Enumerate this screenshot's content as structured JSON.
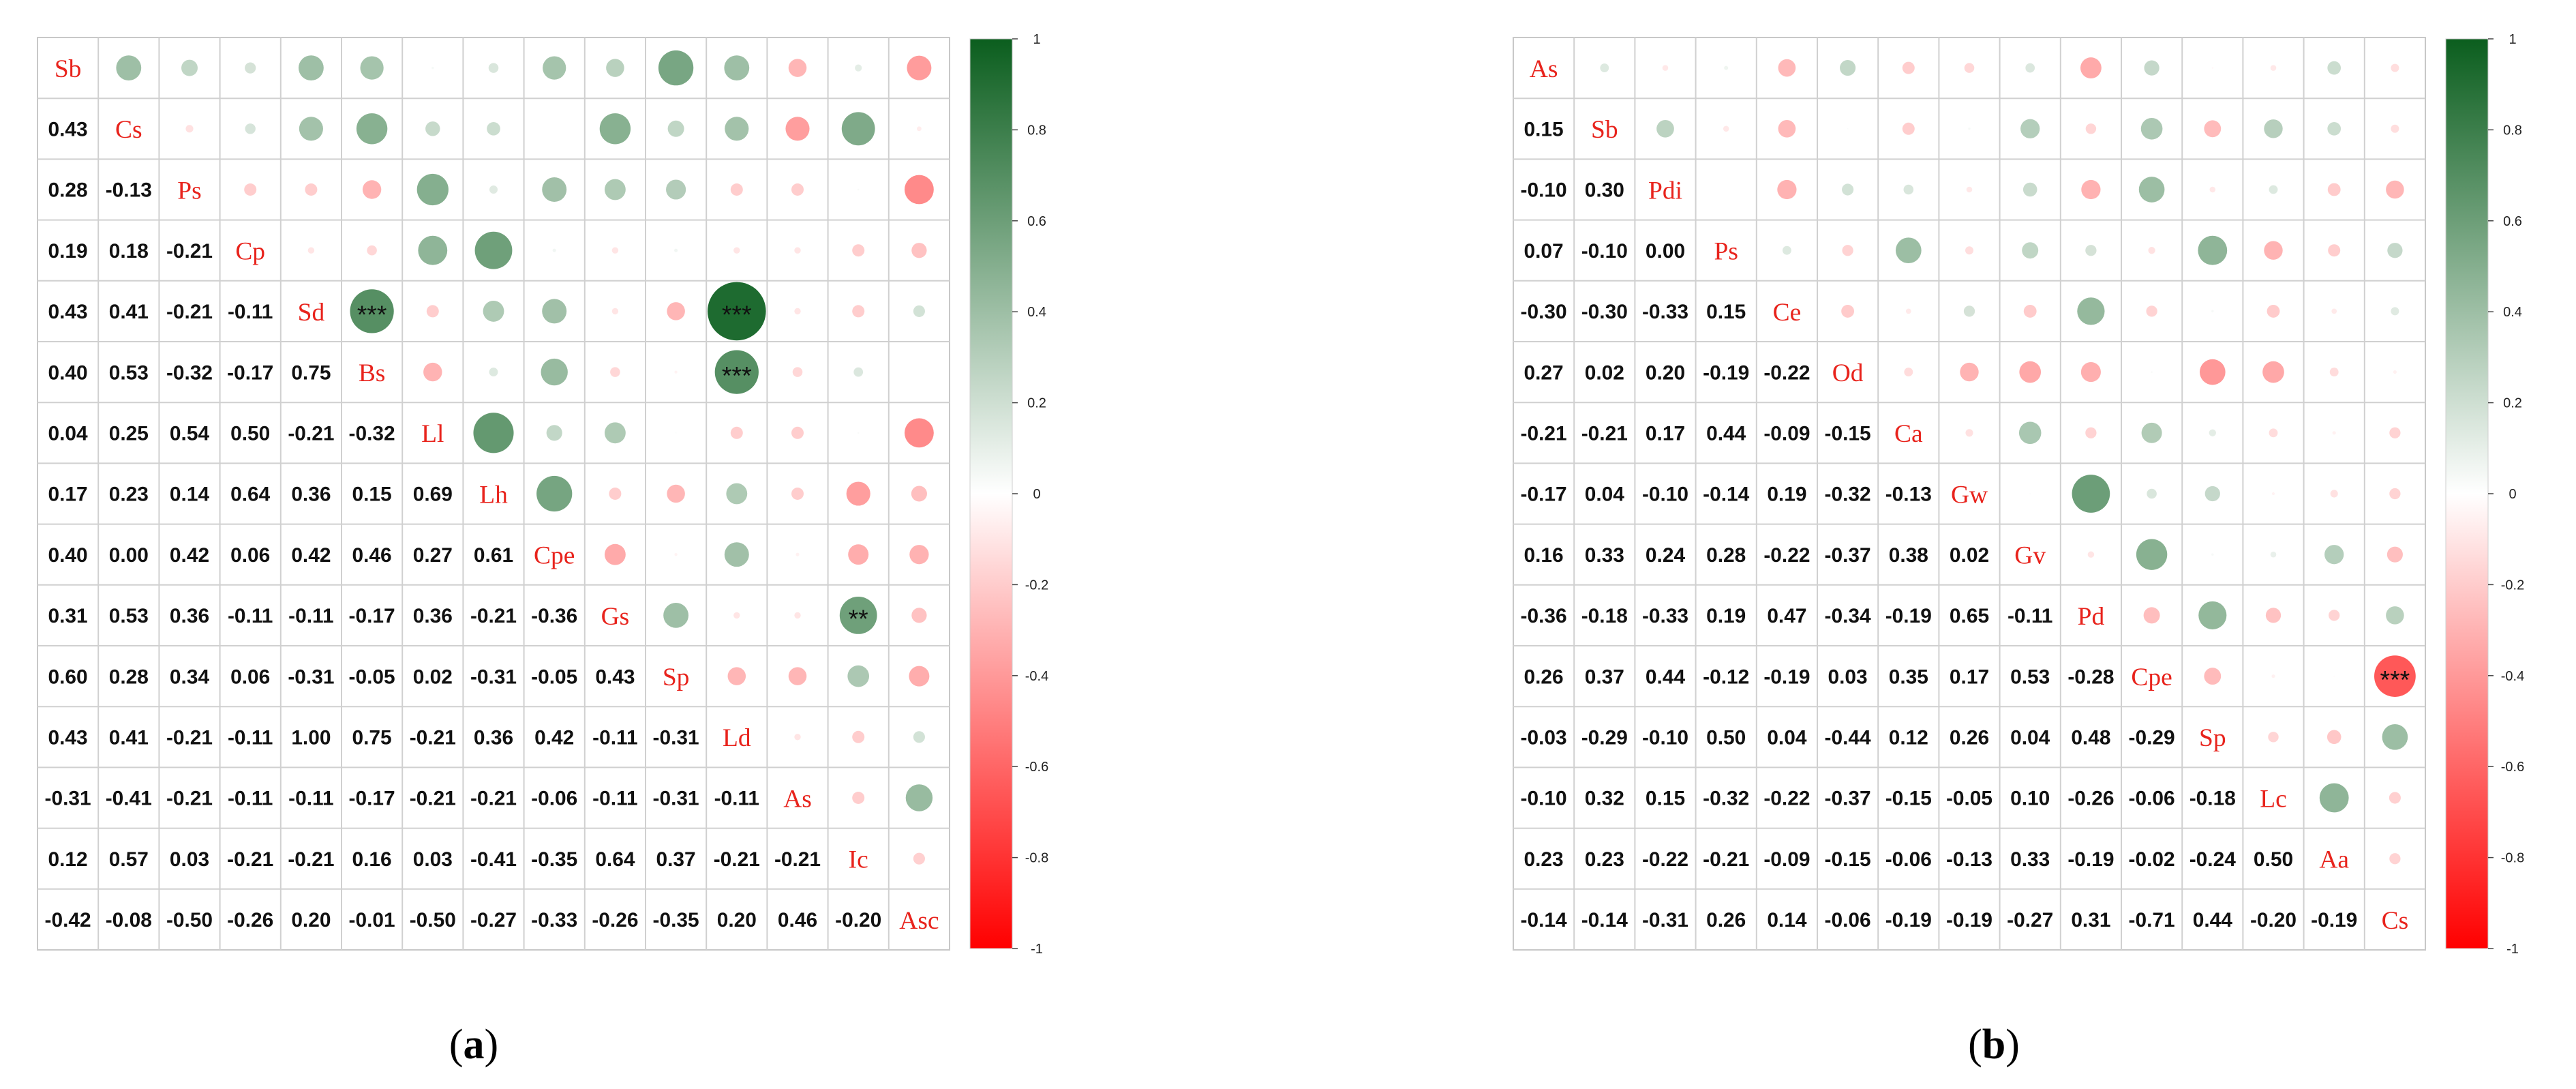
{
  "chart_data": [
    {
      "type": "heatmap",
      "panel_label": "(a)",
      "variables": [
        "Sb",
        "Cs",
        "Ps",
        "Cp",
        "Sd",
        "Bs",
        "Ll",
        "Lh",
        "Cpe",
        "Gs",
        "Sp",
        "Ld",
        "As",
        "Ic",
        "Asc"
      ],
      "lower_values": [
        [],
        [
          "0.43"
        ],
        [
          "0.28",
          "-0.13"
        ],
        [
          "0.19",
          "0.18",
          "-0.21"
        ],
        [
          "0.43",
          "0.41",
          "-0.21",
          "-0.11"
        ],
        [
          "0.40",
          "0.53",
          "-0.32",
          "-0.17",
          "0.75"
        ],
        [
          "0.04",
          "0.25",
          "0.54",
          "0.50",
          "-0.21",
          "-0.32"
        ],
        [
          "0.17",
          "0.23",
          "0.14",
          "0.64",
          "0.36",
          "0.15",
          "0.69"
        ],
        [
          "0.40",
          "0.00",
          "0.42",
          "0.06",
          "0.42",
          "0.46",
          "0.27",
          "0.61"
        ],
        [
          "0.31",
          "0.53",
          "0.36",
          "-0.11",
          "-0.11",
          "-0.17",
          "0.36",
          "-0.21",
          "-0.36"
        ],
        [
          "0.60",
          "0.28",
          "0.34",
          "0.06",
          "-0.31",
          "-0.05",
          "0.02",
          "-0.31",
          "-0.05",
          "0.43"
        ],
        [
          "0.43",
          "0.41",
          "-0.21",
          "-0.11",
          "1.00",
          "0.75",
          "-0.21",
          "0.36",
          "0.42",
          "-0.11",
          "-0.31"
        ],
        [
          "-0.31",
          "-0.41",
          "-0.21",
          "-0.11",
          "-0.11",
          "-0.17",
          "-0.21",
          "-0.21",
          "-0.06",
          "-0.11",
          "-0.31",
          "-0.11"
        ],
        [
          "0.12",
          "0.57",
          "0.03",
          "-0.21",
          "-0.21",
          "0.16",
          "0.03",
          "-0.41",
          "-0.35",
          "0.64",
          "0.37",
          "-0.21",
          "-0.21"
        ],
        [
          "-0.42",
          "-0.08",
          "-0.50",
          "-0.26",
          "0.20",
          "-0.01",
          "-0.50",
          "-0.27",
          "-0.33",
          "-0.26",
          "-0.35",
          "0.20",
          "0.46",
          "-0.20"
        ]
      ],
      "significance": [
        {
          "row": "Sd",
          "col": "Bs",
          "stars": "***"
        },
        {
          "row": "Sd",
          "col": "Ld",
          "stars": "***"
        },
        {
          "row": "Bs",
          "col": "Ld",
          "stars": "***"
        },
        {
          "row": "Gs",
          "col": "Ic",
          "stars": "**"
        }
      ],
      "colorbar": {
        "ticks": [
          "1",
          "0.8",
          "0.6",
          "0.4",
          "0.2",
          "0",
          "-0.2",
          "-0.4",
          "-0.6",
          "-0.8",
          "-1"
        ],
        "range": [
          -1,
          1
        ],
        "high_color": "#0b5e1e",
        "mid_color": "#ffffff",
        "low_color": "#ff0000"
      },
      "label_color": "#e8231c"
    },
    {
      "type": "heatmap",
      "panel_label": "(b)",
      "variables": [
        "As",
        "Sb",
        "Pdi",
        "Ps",
        "Ce",
        "Od",
        "Ca",
        "Gw",
        "Gv",
        "Pd",
        "Cpe",
        "Sp",
        "Lc",
        "Aa",
        "Cs"
      ],
      "lower_values": [
        [],
        [
          "0.15"
        ],
        [
          "-0.10",
          "0.30"
        ],
        [
          "0.07",
          "-0.10",
          "0.00"
        ],
        [
          "-0.30",
          "-0.30",
          "-0.33",
          "0.15"
        ],
        [
          "0.27",
          "0.02",
          "0.20",
          "-0.19",
          "-0.22"
        ],
        [
          "-0.21",
          "-0.21",
          "0.17",
          "0.44",
          "-0.09",
          "-0.15"
        ],
        [
          "-0.17",
          "0.04",
          "-0.10",
          "-0.14",
          "0.19",
          "-0.32",
          "-0.13"
        ],
        [
          "0.16",
          "0.33",
          "0.24",
          "0.28",
          "-0.22",
          "-0.37",
          "0.38",
          "0.02"
        ],
        [
          "-0.36",
          "-0.18",
          "-0.33",
          "0.19",
          "0.47",
          "-0.34",
          "-0.19",
          "0.65",
          "-0.11"
        ],
        [
          "0.26",
          "0.37",
          "0.44",
          "-0.12",
          "-0.19",
          "0.03",
          "0.35",
          "0.17",
          "0.53",
          "-0.28"
        ],
        [
          "-0.03",
          "-0.29",
          "-0.10",
          "0.50",
          "0.04",
          "-0.44",
          "0.12",
          "0.26",
          "0.04",
          "0.48",
          "-0.29"
        ],
        [
          "-0.10",
          "0.32",
          "0.15",
          "-0.32",
          "-0.22",
          "-0.37",
          "-0.15",
          "-0.05",
          "0.10",
          "-0.26",
          "-0.06",
          "-0.18"
        ],
        [
          "0.23",
          "0.23",
          "-0.22",
          "-0.21",
          "-0.09",
          "-0.15",
          "-0.06",
          "-0.13",
          "0.33",
          "-0.19",
          "-0.02",
          "-0.24",
          "0.50"
        ],
        [
          "-0.14",
          "-0.14",
          "-0.31",
          "0.26",
          "0.14",
          "-0.06",
          "-0.19",
          "-0.19",
          "-0.27",
          "0.31",
          "-0.71",
          "0.44",
          "-0.20",
          "-0.19"
        ]
      ],
      "significance": [
        {
          "row": "Cpe",
          "col": "Cs",
          "stars": "***"
        }
      ],
      "colorbar": {
        "ticks": [
          "1",
          "0.8",
          "0.6",
          "0.4",
          "0.2",
          "0",
          "-0.2",
          "-0.4",
          "-0.6",
          "-0.8",
          "-1"
        ],
        "range": [
          -1,
          1
        ],
        "high_color": "#0b5e1e",
        "mid_color": "#ffffff",
        "low_color": "#ff0000"
      },
      "label_color": "#e8231c"
    }
  ]
}
